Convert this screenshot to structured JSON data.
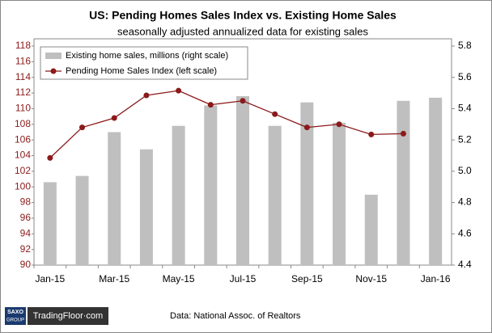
{
  "chart_data": {
    "type": "combo",
    "title": "US: Pending Homes Sales Index vs. Existing Home Sales",
    "subtitle": "seasonally adjusted annualized data for existing sales",
    "categories": [
      "Jan-15",
      null,
      "Mar-15",
      null,
      "May-15",
      null,
      "Jul-15",
      null,
      "Sep-15",
      null,
      "Nov-15",
      null,
      "Jan-16"
    ],
    "series": [
      {
        "name": "Existing home sales, millions (right scale)",
        "type": "bar",
        "axis": "y2",
        "color": "#bfbfbf",
        "values": [
          4.93,
          4.97,
          5.25,
          5.14,
          5.29,
          5.42,
          5.48,
          5.29,
          5.44,
          5.31,
          4.85,
          5.45,
          5.47
        ]
      },
      {
        "name": "Pending Home Sales Index (left scale)",
        "type": "line",
        "color": "#8b1a1a",
        "values": [
          103.7,
          107.6,
          108.8,
          111.7,
          112.3,
          110.5,
          111.0,
          109.3,
          107.6,
          108.0,
          106.7,
          106.8,
          null
        ]
      }
    ],
    "ylim": [
      90,
      118
    ],
    "yticks": [
      90,
      92,
      94,
      96,
      98,
      100,
      102,
      104,
      106,
      108,
      110,
      112,
      114,
      116,
      118
    ],
    "y2lim": [
      4.4,
      5.8
    ],
    "y2ticks": [
      4.4,
      4.6,
      4.8,
      {
        "value": 5,
        "label": "5.0"
      },
      5.2,
      5.4,
      5.6,
      5.8
    ],
    "legend": "upper left",
    "grid": false
  },
  "footer": {
    "source": "Data: National Assoc. of Realtors",
    "logo_top": "SAXO",
    "logo_bottom": "GROUP",
    "brand": "TradingFloor·com"
  }
}
